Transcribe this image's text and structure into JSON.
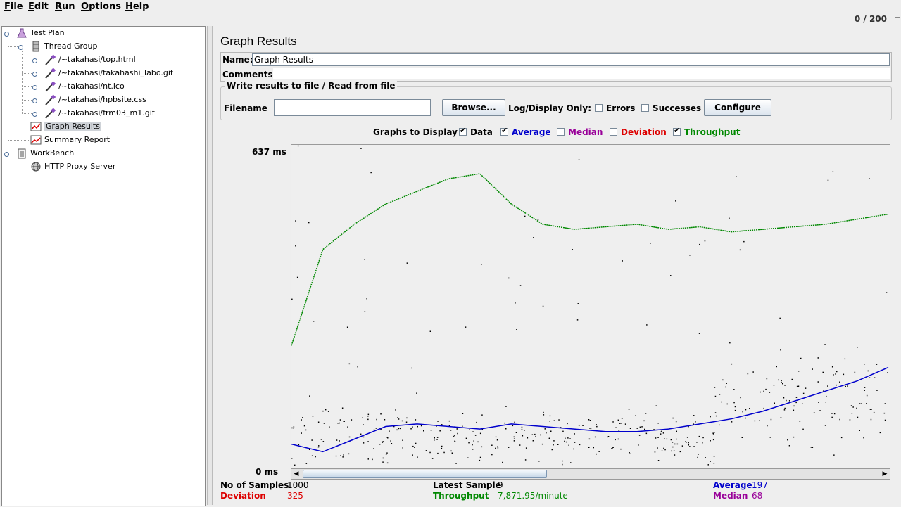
{
  "menubar": [
    {
      "label": "File",
      "u": "F",
      "rest": "ile"
    },
    {
      "label": "Edit",
      "u": "E",
      "rest": "dit"
    },
    {
      "label": "Run",
      "u": "R",
      "rest": "un"
    },
    {
      "label": "Options",
      "u": "O",
      "rest": "ptions"
    },
    {
      "label": "Help",
      "u": "H",
      "rest": "elp"
    }
  ],
  "counter": "0 / 200",
  "tree": {
    "test_plan": "Test Plan",
    "thread_group": "Thread Group",
    "samplers": [
      "/~takahasi/top.html",
      "/~takahasi/takahashi_labo.gif",
      "/~takahasi/nt.ico",
      "/~takahasi/hpbsite.css",
      "/~takahasi/frm03_m1.gif"
    ],
    "graph_results": "Graph Results",
    "summary_report": "Summary Report",
    "workbench": "WorkBench",
    "proxy": "HTTP Proxy Server"
  },
  "panel": {
    "title": "Graph Results",
    "name_label": "Name:",
    "name_value": "Graph Results",
    "comments_label": "Comments:",
    "file_legend": "Write results to file / Read from file",
    "filename_label": "Filename",
    "filename_value": "",
    "browse": "Browse...",
    "log_label": "Log/Display Only:",
    "errors": "Errors",
    "successes": "Successes",
    "configure": "Configure",
    "graphs_label": "Graphs to Display",
    "toggles": [
      {
        "label": "Data",
        "checked": true,
        "color": "#000000"
      },
      {
        "label": "Average",
        "checked": true,
        "color": "#0000cc"
      },
      {
        "label": "Median",
        "checked": false,
        "color": "#990099"
      },
      {
        "label": "Deviation",
        "checked": false,
        "color": "#dd0000"
      },
      {
        "label": "Throughput",
        "checked": true,
        "color": "#008800"
      }
    ],
    "y_max": "637 ms",
    "y_min": "0 ms"
  },
  "stats": {
    "samples_label": "No of Samples",
    "samples_value": "1000",
    "latest_label": "Latest Sample",
    "latest_value": "9",
    "average_label": "Average",
    "average_value": "197",
    "deviation_label": "Deviation",
    "deviation_value": "325",
    "throughput_label": "Throughput",
    "throughput_value": "7,871.95/minute",
    "median_label": "Median",
    "median_value": "68"
  },
  "colors": {
    "average": "#0000cc",
    "throughput": "#008800",
    "deviation": "#dd0000",
    "median": "#990099",
    "data": "#000000"
  },
  "chart_data": {
    "type": "line",
    "ylim": [
      0,
      637
    ],
    "ylabel_max": "637 ms",
    "ylabel_min": "0 ms",
    "series": [
      {
        "name": "Average",
        "values": [
          45,
          30,
          55,
          80,
          85,
          80,
          75,
          85,
          80,
          75,
          70,
          70,
          75,
          85,
          95,
          110,
          130,
          150,
          170,
          197
        ]
      },
      {
        "name": "Throughput",
        "values": [
          240,
          430,
          480,
          520,
          545,
          570,
          580,
          520,
          480,
          470,
          475,
          480,
          470,
          475,
          465,
          470,
          475,
          480,
          490,
          500
        ]
      }
    ]
  }
}
